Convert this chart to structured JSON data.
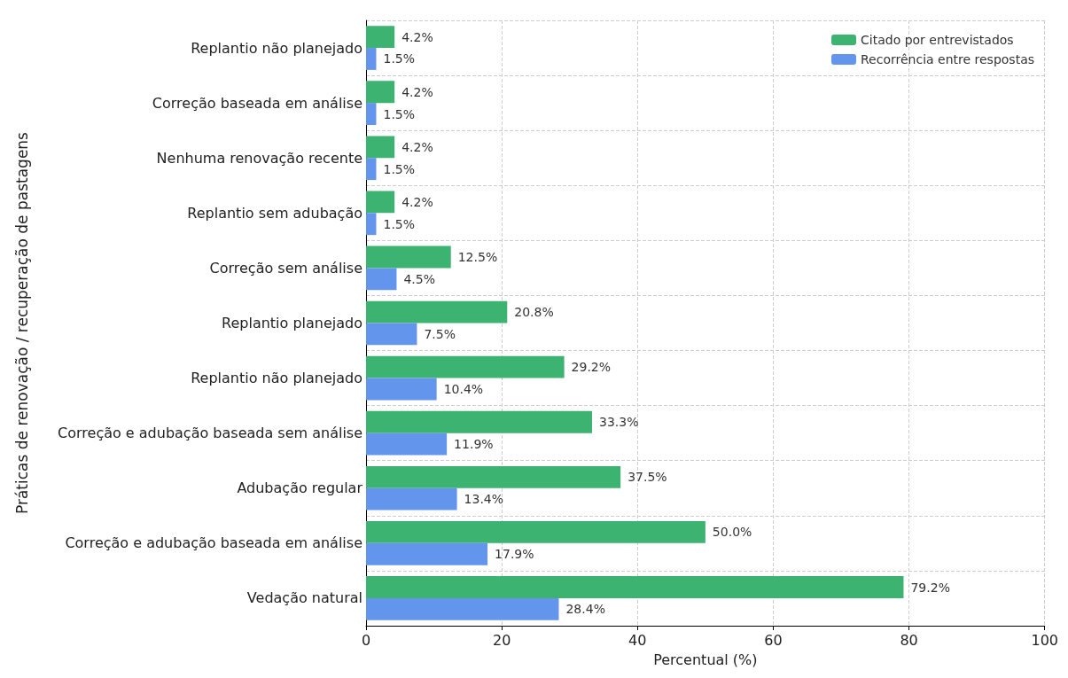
{
  "chart_data": {
    "type": "bar",
    "orientation": "horizontal",
    "xlabel": "Percentual (%)",
    "ylabel": "Práticas de renovação / recuperação de pastagens",
    "categories": [
      "Replantio não planejado",
      "Correção baseada em análise",
      "Nenhuma renovação recente",
      "Replantio sem adubação",
      "Correção sem análise",
      "Replantio planejado",
      "Replantio não planejado",
      "Correção e adubação baseada sem análise",
      "Adubação regular",
      "Correção e adubação baseada em análise",
      "Vedação natural"
    ],
    "series": [
      {
        "name": "Citado por entrevistados",
        "color": "#3cb371",
        "values": [
          4.2,
          4.2,
          4.2,
          4.2,
          12.5,
          20.8,
          29.2,
          33.3,
          37.5,
          50.0,
          79.2
        ],
        "value_labels": [
          "4.2%",
          "4.2%",
          "4.2%",
          "4.2%",
          "12.5%",
          "20.8%",
          "29.2%",
          "33.3%",
          "37.5%",
          "50.0%",
          "79.2%"
        ]
      },
      {
        "name": "Recorrência entre respostas",
        "color": "#6495ed",
        "values": [
          1.5,
          1.5,
          1.5,
          1.5,
          4.5,
          7.5,
          10.4,
          11.9,
          13.4,
          17.9,
          28.4
        ],
        "value_labels": [
          "1.5%",
          "1.5%",
          "1.5%",
          "1.5%",
          "4.5%",
          "7.5%",
          "10.4%",
          "11.9%",
          "13.4%",
          "17.9%",
          "28.4%"
        ]
      }
    ],
    "xlim": [
      0,
      100
    ],
    "xticks": [
      0,
      20,
      40,
      60,
      80,
      100
    ],
    "grid": true,
    "legend": "top right"
  }
}
